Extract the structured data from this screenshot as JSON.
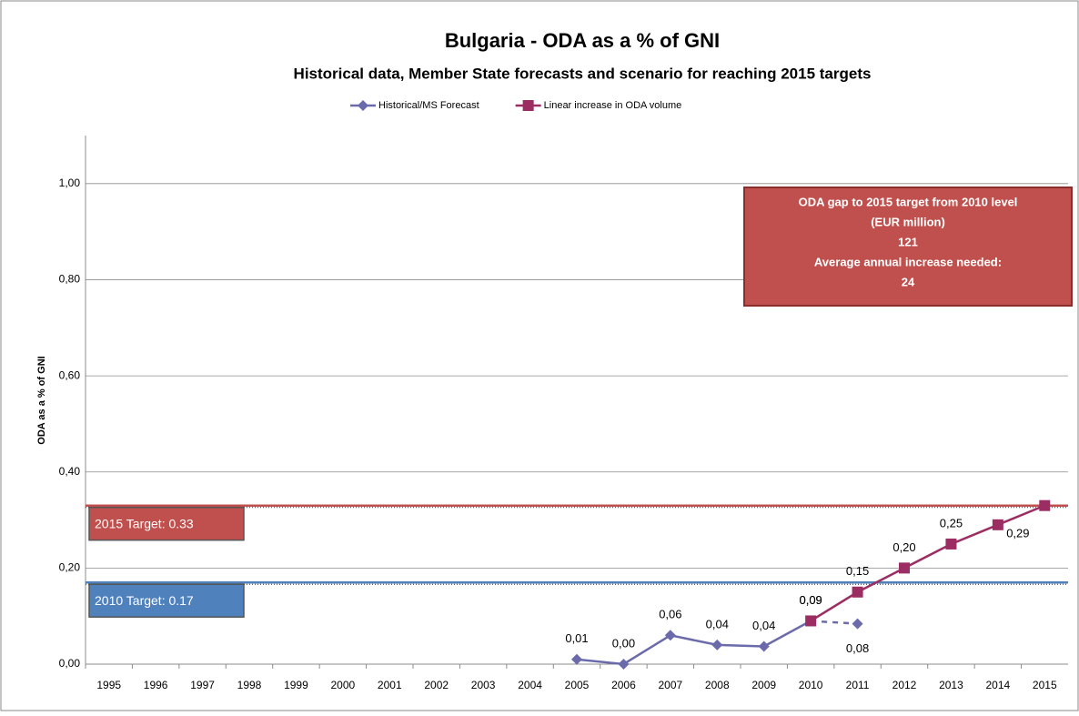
{
  "chart_data": {
    "type": "line",
    "title": "Bulgaria - ODA as a % of GNI",
    "subtitle": "Historical data, Member State forecasts and scenario for reaching 2015 targets",
    "y_axis_label": "ODA as a % of GNI",
    "categories": [
      "1995",
      "1996",
      "1997",
      "1998",
      "1999",
      "2000",
      "2001",
      "2002",
      "2003",
      "2004",
      "2005",
      "2006",
      "2007",
      "2008",
      "2009",
      "2010",
      "2011",
      "2012",
      "2013",
      "2014",
      "2015"
    ],
    "series": [
      {
        "name": "Historical/MS Forecast",
        "color": "#6b6bab",
        "marker": "diamond",
        "dashed_last_segment": true,
        "values": [
          null,
          null,
          null,
          null,
          null,
          null,
          null,
          null,
          null,
          null,
          0.01,
          0.0,
          0.06,
          0.04,
          0.037,
          0.09,
          0.084,
          null,
          null,
          null,
          null
        ],
        "value_labels": [
          null,
          null,
          null,
          null,
          null,
          null,
          null,
          null,
          null,
          null,
          "0,01",
          "0,00",
          "0,06",
          "0,04",
          "0,04",
          "0,09",
          "0,08",
          null,
          null,
          null,
          null
        ]
      },
      {
        "name": "Linear increase in ODA volume",
        "color": "#9b2d63",
        "marker": "square",
        "values": [
          null,
          null,
          null,
          null,
          null,
          null,
          null,
          null,
          null,
          null,
          null,
          null,
          null,
          null,
          null,
          0.09,
          0.15,
          0.2,
          0.25,
          0.29,
          0.33
        ],
        "value_labels": [
          null,
          null,
          null,
          null,
          null,
          null,
          null,
          null,
          null,
          null,
          null,
          null,
          null,
          null,
          null,
          "0,09",
          "0,15",
          "0,20",
          "0,25",
          "0,29",
          null
        ]
      }
    ],
    "targets": [
      {
        "label": "2015 Target: 0.33",
        "value": 0.33,
        "color": "#c0504d"
      },
      {
        "label": "2010 Target: 0.17",
        "value": 0.17,
        "color": "#4f81bd"
      }
    ],
    "annotation": [
      "ODA gap to 2015 target from 2010 level",
      "(EUR million)",
      "121",
      "Average annual increase needed:",
      "24"
    ],
    "ylim": [
      0,
      1.1
    ],
    "yticks": [
      {
        "value": 0,
        "label": "0,00"
      },
      {
        "value": 0.2,
        "label": "0,20"
      },
      {
        "value": 0.4,
        "label": "0,40"
      },
      {
        "value": 0.6,
        "label": "0,60"
      },
      {
        "value": 0.8,
        "label": "0,80"
      },
      {
        "value": 1.0,
        "label": "1,00"
      }
    ],
    "grid": true,
    "legend": "top"
  }
}
